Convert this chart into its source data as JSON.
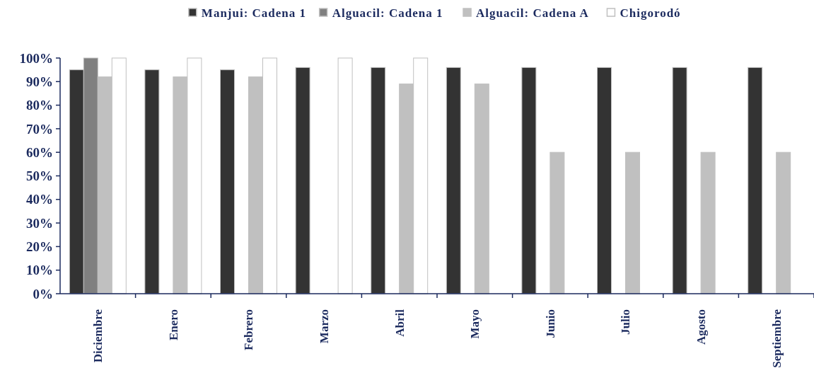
{
  "chart_data": {
    "type": "bar",
    "categories": [
      "Diciembre",
      "Enero",
      "Febrero",
      "Marzo",
      "Abril",
      "Mayo",
      "Junio",
      "Julio",
      "Agosto",
      "Septiembre"
    ],
    "series": [
      {
        "name": "Manjui: Cadena 1",
        "color": "#333333",
        "values": [
          95,
          95,
          95,
          96,
          96,
          96,
          96,
          96,
          96,
          96
        ]
      },
      {
        "name": "Alguacil: Cadena 1",
        "color": "#808080",
        "values": [
          100,
          null,
          null,
          null,
          null,
          null,
          null,
          null,
          null,
          null
        ]
      },
      {
        "name": "Alguacil: Cadena A",
        "color": "#c0c0c0",
        "values": [
          92,
          92,
          92,
          null,
          89,
          89,
          60,
          60,
          60,
          60
        ]
      },
      {
        "name": "Chigorodó",
        "color": "#ffffff",
        "values": [
          100,
          100,
          100,
          100,
          100,
          null,
          null,
          null,
          null,
          null
        ]
      }
    ],
    "ylim": [
      0,
      100
    ],
    "yticks": [
      {
        "value": 0,
        "label": "0%"
      },
      {
        "value": 10,
        "label": "10%"
      },
      {
        "value": 20,
        "label": "20%"
      },
      {
        "value": 30,
        "label": "30%"
      },
      {
        "value": 40,
        "label": "40%"
      },
      {
        "value": 50,
        "label": "50%"
      },
      {
        "value": 60,
        "label": "60%"
      },
      {
        "value": 70,
        "label": "70%"
      },
      {
        "value": 80,
        "label": "80%"
      },
      {
        "value": 90,
        "label": "90%"
      },
      {
        "value": 100,
        "label": "100%"
      }
    ],
    "legend": "top",
    "grid": false
  }
}
